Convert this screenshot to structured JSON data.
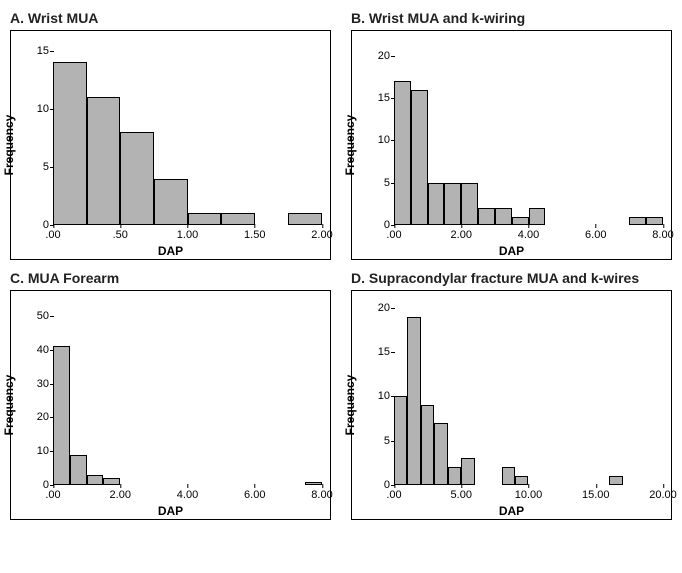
{
  "layout": {
    "panels": [
      "A",
      "B",
      "C",
      "D"
    ],
    "bar_fill": "#b3b3b3",
    "bar_stroke": "#000000",
    "axis_color": "#000000",
    "background_color": "#ffffff",
    "title_fontsize": 14,
    "label_fontsize": 12,
    "tick_fontsize": 11
  },
  "A": {
    "title": "A. Wrist MUA",
    "type": "histogram",
    "xlabel": "DAP",
    "ylabel": "Frequency",
    "xlim": [
      0,
      2.0
    ],
    "ylim": [
      0,
      16
    ],
    "xtick_labels": [
      ".00",
      ".50",
      "1.00",
      "1.50",
      "2.00"
    ],
    "xtick_positions": [
      0,
      0.5,
      1.0,
      1.5,
      2.0
    ],
    "ytick_labels": [
      "0",
      "5",
      "10",
      "15"
    ],
    "ytick_positions": [
      0,
      5,
      10,
      15
    ],
    "bar_width": 0.25,
    "bars": [
      {
        "x": 0.0,
        "h": 14
      },
      {
        "x": 0.25,
        "h": 11
      },
      {
        "x": 0.5,
        "h": 8
      },
      {
        "x": 0.75,
        "h": 4
      },
      {
        "x": 1.0,
        "h": 1
      },
      {
        "x": 1.25,
        "h": 1
      },
      {
        "x": 1.75,
        "h": 1
      }
    ]
  },
  "B": {
    "title": "B. Wrist MUA and k-wiring",
    "type": "histogram",
    "xlabel": "DAP",
    "ylabel": "Frequency",
    "xlim": [
      0,
      8.0
    ],
    "ylim": [
      0,
      22
    ],
    "xtick_labels": [
      ".00",
      "2.00",
      "4.00",
      "6.00",
      "8.00"
    ],
    "xtick_positions": [
      0,
      2,
      4,
      6,
      8
    ],
    "ytick_labels": [
      "0",
      "5",
      "10",
      "15",
      "20"
    ],
    "ytick_positions": [
      0,
      5,
      10,
      15,
      20
    ],
    "bar_width": 0.5,
    "bars": [
      {
        "x": 0.0,
        "h": 17
      },
      {
        "x": 0.5,
        "h": 16
      },
      {
        "x": 1.0,
        "h": 5
      },
      {
        "x": 1.5,
        "h": 5
      },
      {
        "x": 2.0,
        "h": 5
      },
      {
        "x": 2.5,
        "h": 2
      },
      {
        "x": 3.0,
        "h": 2
      },
      {
        "x": 3.5,
        "h": 1
      },
      {
        "x": 4.0,
        "h": 2
      },
      {
        "x": 7.0,
        "h": 1
      },
      {
        "x": 7.5,
        "h": 1
      }
    ]
  },
  "C": {
    "title": "C. MUA Forearm",
    "type": "histogram",
    "xlabel": "DAP",
    "ylabel": "Frequency",
    "xlim": [
      0,
      8.0
    ],
    "ylim": [
      0,
      55
    ],
    "xtick_labels": [
      ".00",
      "2.00",
      "4.00",
      "6.00",
      "8.00"
    ],
    "xtick_positions": [
      0,
      2,
      4,
      6,
      8
    ],
    "ytick_labels": [
      "0",
      "10",
      "20",
      "30",
      "40",
      "50"
    ],
    "ytick_positions": [
      0,
      10,
      20,
      30,
      40,
      50
    ],
    "bar_width": 0.5,
    "bars": [
      {
        "x": 0.0,
        "h": 41
      },
      {
        "x": 0.5,
        "h": 9
      },
      {
        "x": 1.0,
        "h": 3
      },
      {
        "x": 1.5,
        "h": 2
      },
      {
        "x": 7.5,
        "h": 1
      }
    ]
  },
  "D": {
    "title": "D. Supracondylar fracture MUA and k-wires",
    "type": "histogram",
    "xlabel": "DAP",
    "ylabel": "Frequency",
    "xlim": [
      0,
      20.0
    ],
    "ylim": [
      0,
      21
    ],
    "xtick_labels": [
      ".00",
      "5.00",
      "10.00",
      "15.00",
      "20.00"
    ],
    "xtick_positions": [
      0,
      5,
      10,
      15,
      20
    ],
    "ytick_labels": [
      "0",
      "5",
      "10",
      "15",
      "20"
    ],
    "ytick_positions": [
      0,
      5,
      10,
      15,
      20
    ],
    "bar_width": 1.0,
    "bars": [
      {
        "x": 0,
        "h": 10
      },
      {
        "x": 1,
        "h": 19
      },
      {
        "x": 2,
        "h": 9
      },
      {
        "x": 3,
        "h": 7
      },
      {
        "x": 4,
        "h": 2
      },
      {
        "x": 5,
        "h": 3
      },
      {
        "x": 8,
        "h": 2
      },
      {
        "x": 9,
        "h": 1
      },
      {
        "x": 16,
        "h": 1
      }
    ]
  }
}
